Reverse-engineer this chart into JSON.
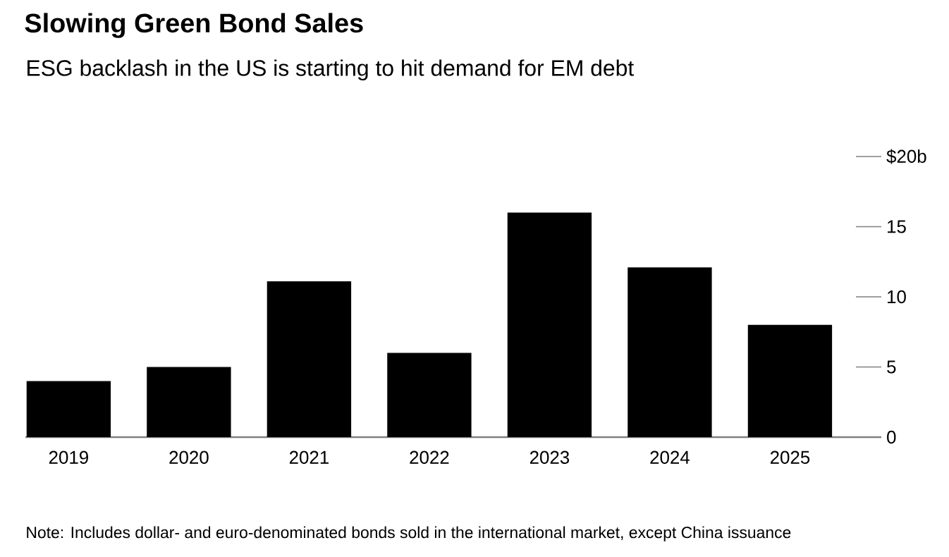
{
  "chart_data": {
    "type": "bar",
    "title": "Slowing Green Bond Sales",
    "subtitle": "ESG backlash in the US is starting to hit demand for EM debt",
    "categories": [
      "2019",
      "2020",
      "2021",
      "2022",
      "2023",
      "2024",
      "2025"
    ],
    "values": [
      4,
      5,
      11.1,
      6,
      16,
      12.1,
      8
    ],
    "color": "#000000",
    "ylim": [
      0,
      20
    ],
    "yticks": [
      {
        "value": 20,
        "label": "$20b"
      },
      15,
      10,
      5,
      0
    ],
    "annotations": [
      "Note: Includes dollar- and euro-denominated bonds sold in the international market, except China issuance"
    ]
  }
}
